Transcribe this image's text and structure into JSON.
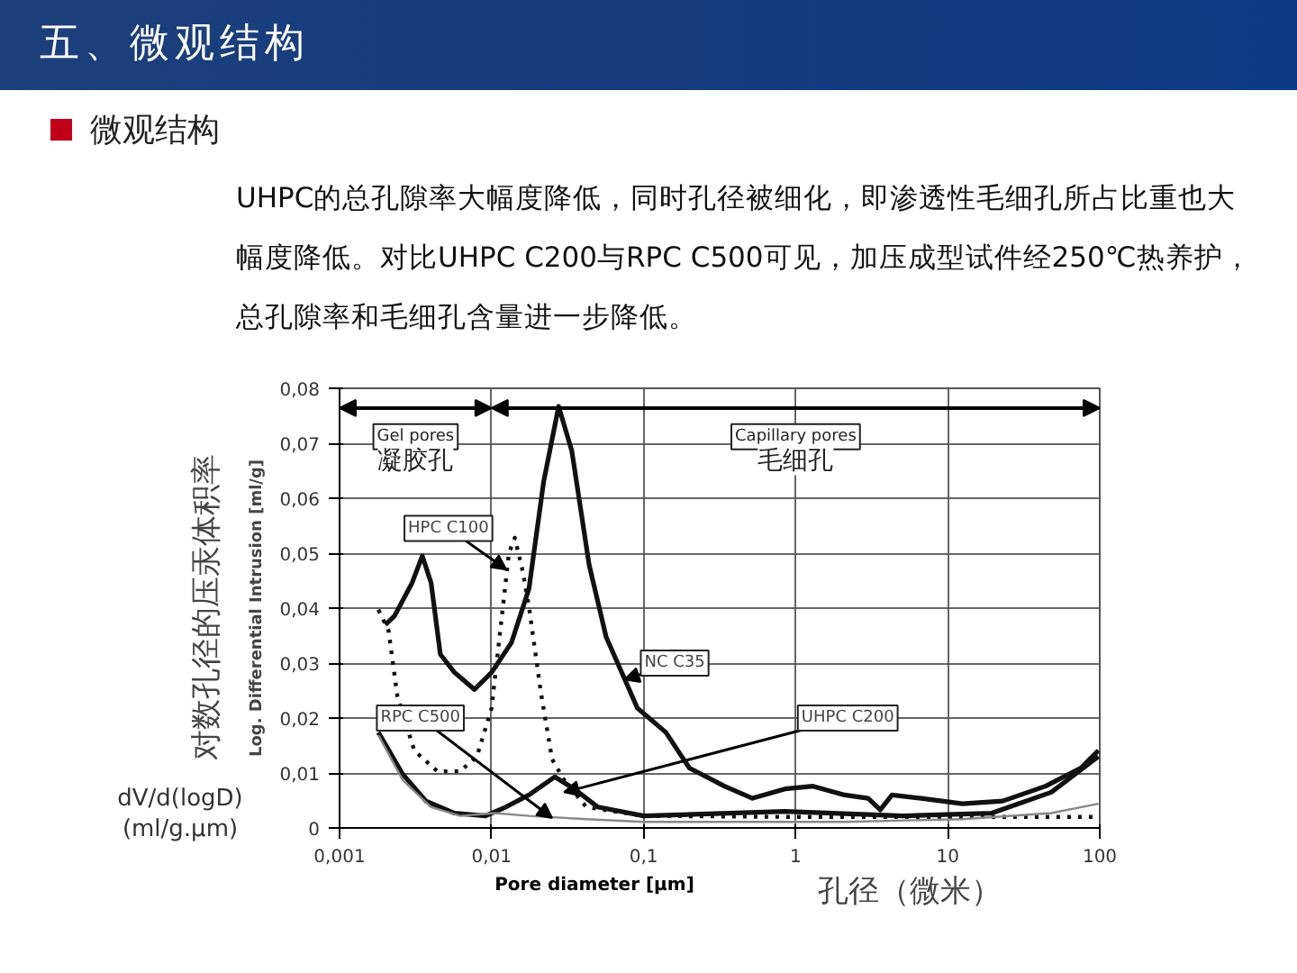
{
  "chart_data": {
    "type": "line",
    "title": "五、微观结构",
    "subtitle": "微观结构",
    "xlabel": "Pore diameter [µm]",
    "ylabel": "Log. Differential Intrusion [ml/g]",
    "annotations": [
      "UHPC的总孔隙率大幅度降低，同时孔径被细化，即渗透性毛细孔所占比重也大幅度降低。对比UHPC  C200与RPC  C500可见，加压成型试件经250℃热养护，总孔隙率和毛细孔含量进一步降低。",
      "对数孔径的压汞体积率",
      "dV/d(logD)\n(ml/g.µm)",
      "孔径（微米）",
      "Gel pores",
      "凝胶孔",
      "Capillary pores",
      "毛细孔"
    ],
    "log": "x",
    "grid": true,
    "legend": false,
    "xlim": [
      0.001,
      100
    ],
    "xticks": [
      {
        "value": 0.001,
        "label": "0,001"
      },
      {
        "value": 0.01,
        "label": "0,01"
      },
      {
        "value": 0.1,
        "label": "0,1"
      },
      1,
      10,
      100
    ],
    "ylim": [
      0,
      0.08
    ],
    "yticks": [
      0,
      {
        "value": 0.01,
        "label": "0,01"
      },
      {
        "value": 0.02,
        "label": "0,02"
      },
      {
        "value": 0.03,
        "label": "0,03"
      },
      {
        "value": 0.04,
        "label": "0,04"
      },
      {
        "value": 0.05,
        "label": "0,05"
      },
      {
        "value": 0.06,
        "label": "0,06"
      },
      {
        "value": 0.07,
        "label": "0,07"
      },
      {
        "value": 0.08,
        "label": "0,08"
      }
    ],
    "series": [
      {
        "name": "NC C35",
        "color": "#111111",
        "line_style": "solid",
        "x": [
          0.002,
          0.0023,
          0.003,
          0.0035,
          0.004,
          0.0046,
          0.0057,
          0.0077,
          0.01,
          0.0135,
          0.0176,
          0.022,
          0.0276,
          0.0337,
          0.0438,
          0.0566,
          0.091,
          0.14,
          0.2,
          0.34,
          0.52,
          0.85,
          1.3,
          2.1,
          3,
          3.6,
          4.3,
          6.7,
          12.5,
          23,
          44,
          75,
          98
        ],
        "values": [
          0.037,
          0.0386,
          0.0446,
          0.0495,
          0.0446,
          0.0316,
          0.0283,
          0.0252,
          0.0283,
          0.0337,
          0.0435,
          0.063,
          0.0767,
          0.0686,
          0.0479,
          0.0348,
          0.0218,
          0.0174,
          0.0109,
          0.0076,
          0.0054,
          0.0071,
          0.0076,
          0.006,
          0.0054,
          0.0033,
          0.006,
          0.0054,
          0.0044,
          0.0049,
          0.0076,
          0.0109,
          0.0141
        ]
      },
      {
        "name": "HPC C100",
        "color": "#111111",
        "line_style": "dotted",
        "x": [
          0.0018,
          0.0021,
          0.0024,
          0.0031,
          0.0044,
          0.0062,
          0.008,
          0.01,
          0.0114,
          0.013,
          0.0142,
          0.016,
          0.0176,
          0.021,
          0.025,
          0.03,
          0.042,
          0.1,
          1,
          10,
          100
        ],
        "values": [
          0.0397,
          0.0359,
          0.024,
          0.0141,
          0.0103,
          0.0103,
          0.013,
          0.0218,
          0.0359,
          0.05,
          0.0528,
          0.0468,
          0.0403,
          0.025,
          0.0125,
          0.0087,
          0.0038,
          0.0022,
          0.002,
          0.002,
          0.002
        ]
      },
      {
        "name": "UHPC C200",
        "color": "#111111",
        "line_style": "solid",
        "x": [
          0.0018,
          0.0026,
          0.0037,
          0.0057,
          0.0091,
          0.0124,
          0.0176,
          0.026,
          0.035,
          0.05,
          0.1,
          0.85,
          5.1,
          19.5,
          48,
          98
        ],
        "values": [
          0.0174,
          0.0098,
          0.0049,
          0.0027,
          0.0022,
          0.0038,
          0.006,
          0.0093,
          0.0071,
          0.0038,
          0.0022,
          0.003,
          0.0022,
          0.0027,
          0.0065,
          0.013
        ]
      },
      {
        "name": "RPC C500",
        "color": "#888888",
        "line_style": "solid",
        "x": [
          0.0018,
          0.0026,
          0.004,
          0.0062,
          0.0105,
          0.0176,
          0.042,
          0.1,
          2.1,
          12.5,
          48,
          98
        ],
        "values": [
          0.0169,
          0.0087,
          0.0038,
          0.0022,
          0.0027,
          0.0022,
          0.0016,
          0.0011,
          0.0011,
          0.0016,
          0.0027,
          0.0044
        ]
      }
    ]
  }
}
